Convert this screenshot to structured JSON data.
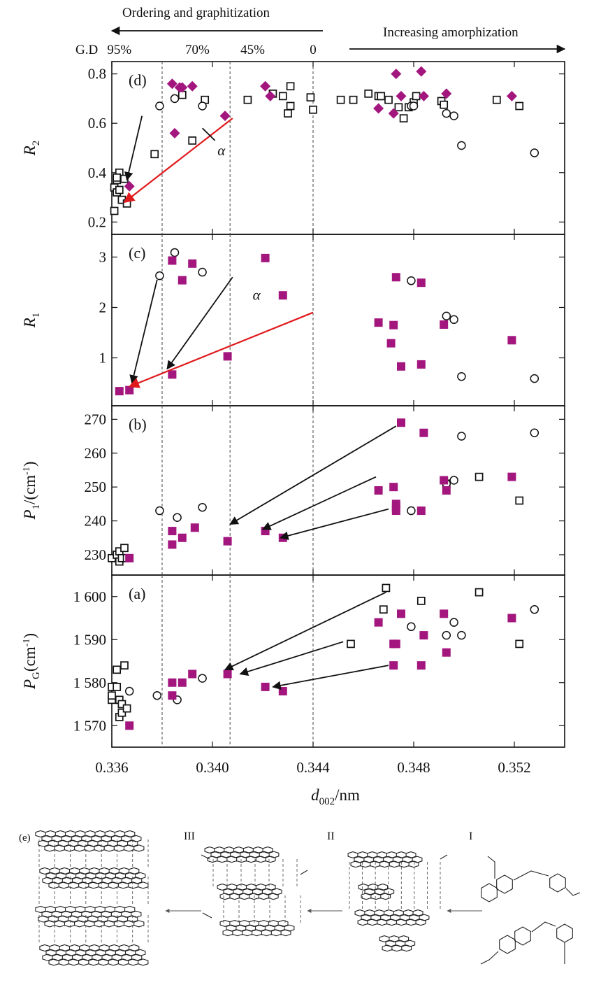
{
  "header": {
    "left_arrow_label": "Ordering and graphitization",
    "right_arrow_label": "Increasing amorphization",
    "gd_label": "G.D",
    "gd_marks": [
      {
        "label": "95%",
        "d002": 0.3363
      },
      {
        "label": "70%",
        "d002": 0.3394
      },
      {
        "label": "45%",
        "d002": 0.3416
      },
      {
        "label": "0",
        "d002": 0.344
      }
    ]
  },
  "colors": {
    "magenta": "#a3167e",
    "black": "#111111",
    "red_arrow": "#e0191c",
    "dashed_line": "#555555"
  },
  "chart_data": {
    "type": "scatter",
    "xlabel": "d002/nm",
    "xlim": [
      0.336,
      0.354
    ],
    "xticks": [
      0.336,
      0.34,
      0.344,
      0.348,
      0.352
    ],
    "xtick_labels": [
      "0.336",
      "0.340",
      "0.344",
      "0.348",
      "0.352"
    ],
    "vertical_dashed_lines": [
      0.338,
      0.3407,
      0.344
    ],
    "panels": [
      {
        "id": "d",
        "letter": "(d)",
        "ylabel_main": "R",
        "ylabel_sub": "2",
        "ylim": [
          0.15,
          0.85
        ],
        "yticks": [
          0.2,
          0.4,
          0.6,
          0.8
        ],
        "ytick_labels": [
          "0.2",
          "0.4",
          "0.6",
          "0.8"
        ],
        "annotation": "α",
        "series": [
          {
            "marker": "open-square",
            "x": [
              0.3361,
              0.3362,
              0.3361,
              0.3363,
              0.3362,
              0.3364,
              0.3363,
              0.3362,
              0.3365,
              0.3366,
              0.3377,
              0.3388,
              0.3392,
              0.3397,
              0.3414,
              0.3424,
              0.3428,
              0.343,
              0.3431,
              0.3431,
              0.3439,
              0.344,
              0.3451,
              0.3456,
              0.3462,
              0.3466,
              0.3467,
              0.347,
              0.3474,
              0.3476,
              0.3478,
              0.348,
              0.3481,
              0.3491,
              0.3492,
              0.3513,
              0.3522
            ],
            "y": [
              0.245,
              0.37,
              0.34,
              0.4,
              0.32,
              0.29,
              0.33,
              0.38,
              0.375,
              0.275,
              0.475,
              0.715,
              0.53,
              0.695,
              0.695,
              0.72,
              0.71,
              0.64,
              0.75,
              0.67,
              0.705,
              0.655,
              0.695,
              0.695,
              0.72,
              0.71,
              0.71,
              0.695,
              0.665,
              0.62,
              0.665,
              0.685,
              0.71,
              0.69,
              0.675,
              0.695,
              0.67
            ]
          },
          {
            "marker": "circle",
            "x": [
              0.3379,
              0.3385,
              0.3396,
              0.3479,
              0.348,
              0.3493,
              0.3496,
              0.3499,
              0.3528
            ],
            "y": [
              0.67,
              0.7,
              0.67,
              0.67,
              0.67,
              0.64,
              0.63,
              0.51,
              0.48
            ]
          },
          {
            "marker": "diamond",
            "x": [
              0.3367,
              0.3384,
              0.3387,
              0.3385,
              0.3388,
              0.3392,
              0.3405,
              0.3421,
              0.3423,
              0.3466,
              0.3473,
              0.3475,
              0.3483,
              0.3484,
              0.3472,
              0.3493,
              0.3519
            ],
            "y": [
              0.345,
              0.76,
              0.745,
              0.56,
              0.745,
              0.75,
              0.63,
              0.75,
              0.71,
              0.66,
              0.8,
              0.71,
              0.81,
              0.71,
              0.64,
              0.72,
              0.71
            ]
          }
        ]
      },
      {
        "id": "c",
        "letter": "(c)",
        "ylabel_main": "R",
        "ylabel_sub": "1",
        "ylim": [
          0.05,
          3.45
        ],
        "yticks": [
          1,
          2,
          3
        ],
        "ytick_labels": [
          "1",
          "2",
          "3"
        ],
        "annotation": "α",
        "series": [
          {
            "marker": "circle",
            "x": [
              0.3379,
              0.3385,
              0.3396,
              0.3479,
              0.3493,
              0.3496,
              0.3499,
              0.3528
            ],
            "y": [
              2.63,
              3.09,
              2.7,
              2.53,
              1.83,
              1.76,
              0.63,
              0.59
            ]
          },
          {
            "marker": "square",
            "x": [
              0.3363,
              0.3367,
              0.3384,
              0.3388,
              0.3392,
              0.3384,
              0.3406,
              0.3421,
              0.3428,
              0.3466,
              0.3473,
              0.3472,
              0.3471,
              0.3475,
              0.3483,
              0.3483,
              0.3492,
              0.3519
            ],
            "y": [
              0.34,
              0.36,
              2.93,
              2.54,
              2.87,
              0.67,
              1.03,
              2.98,
              2.24,
              1.7,
              2.6,
              1.65,
              1.29,
              0.83,
              2.49,
              0.87,
              1.66,
              1.35
            ]
          }
        ]
      },
      {
        "id": "b",
        "letter": "(b)",
        "ylabel_main": "P",
        "ylabel_sub": "1",
        "ylabel_tail": "/(cm",
        "ylabel_sup": "-1",
        "ylabel_end": ")",
        "ylim": [
          224,
          274
        ],
        "yticks": [
          230,
          240,
          250,
          260,
          270
        ],
        "ytick_labels": [
          "230",
          "240",
          "250",
          "260",
          "270"
        ],
        "series": [
          {
            "marker": "open-square",
            "x": [
              0.336,
              0.3362,
              0.3363,
              0.3363,
              0.3364,
              0.3365,
              0.3366,
              0.3493,
              0.3506,
              0.3522
            ],
            "y": [
              229,
              230,
              231,
              228,
              229,
              232,
              229,
              251,
              253,
              246
            ]
          },
          {
            "marker": "circle",
            "x": [
              0.3379,
              0.3386,
              0.3396,
              0.3479,
              0.3493,
              0.3496,
              0.3499,
              0.3528
            ],
            "y": [
              243,
              241,
              244,
              243,
              251,
              252,
              265,
              266
            ]
          },
          {
            "marker": "square",
            "x": [
              0.3367,
              0.3384,
              0.3384,
              0.3388,
              0.3393,
              0.3406,
              0.3421,
              0.3428,
              0.3466,
              0.3472,
              0.3473,
              0.3473,
              0.3473,
              0.3475,
              0.3484,
              0.3483,
              0.3492,
              0.3493,
              0.3519
            ],
            "y": [
              229,
              237,
              233,
              235,
              238,
              234,
              237,
              235,
              249,
              250,
              245,
              243,
              244,
              269,
              266,
              243,
              252,
              249,
              253
            ]
          }
        ]
      },
      {
        "id": "a",
        "letter": "(a)",
        "ylabel_main": "P",
        "ylabel_sub": "G",
        "ylabel_tail": "(cm",
        "ylabel_sup": "-1",
        "ylabel_end": ")",
        "ylim": [
          1565,
          1605
        ],
        "yticks": [
          1570,
          1580,
          1590,
          1600
        ],
        "ytick_labels": [
          "1 570",
          "1 580",
          "1 590",
          "1 600"
        ],
        "series": [
          {
            "marker": "open-square",
            "x": [
              0.336,
              0.336,
              0.336,
              0.3362,
              0.3362,
              0.3363,
              0.3363,
              0.3364,
              0.3364,
              0.3365,
              0.3366,
              0.3455,
              0.3468,
              0.3469,
              0.3483,
              0.3506,
              0.3522
            ],
            "y": [
              1576,
              1577,
              1579,
              1583,
              1579,
              1576,
              1572,
              1573,
              1575,
              1584,
              1574,
              1589,
              1597,
              1602,
              1599,
              1601,
              1589
            ]
          },
          {
            "marker": "circle",
            "x": [
              0.3367,
              0.3378,
              0.3386,
              0.3396,
              0.3479,
              0.3493,
              0.3496,
              0.3499,
              0.3528
            ],
            "y": [
              1578,
              1577,
              1576,
              1581,
              1593,
              1591,
              1594,
              1591,
              1597
            ]
          },
          {
            "marker": "square",
            "x": [
              0.3367,
              0.3384,
              0.3384,
              0.3388,
              0.3392,
              0.3406,
              0.3421,
              0.3428,
              0.3466,
              0.3472,
              0.3473,
              0.3472,
              0.3475,
              0.3484,
              0.3483,
              0.3492,
              0.3493,
              0.3519
            ],
            "y": [
              1570,
              1580,
              1577,
              1580,
              1582,
              1582,
              1579,
              1578,
              1594,
              1589,
              1589,
              1584,
              1596,
              1591,
              1584,
              1596,
              1587,
              1595
            ]
          }
        ]
      }
    ]
  },
  "panel_e": {
    "letter": "(e)",
    "stages": [
      "III",
      "II",
      "I"
    ]
  }
}
